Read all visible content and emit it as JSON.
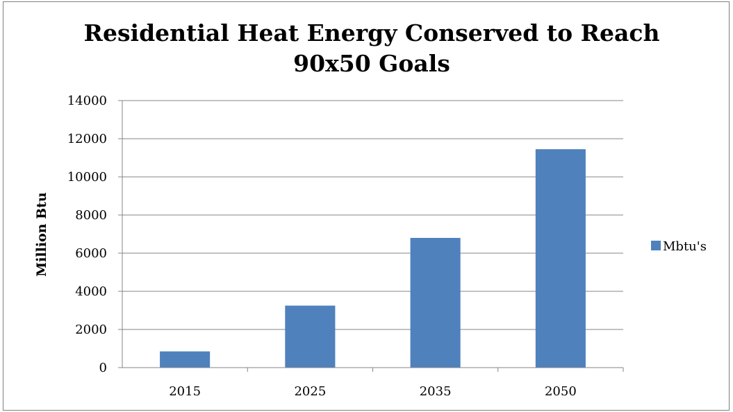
{
  "chart_data": {
    "type": "bar",
    "title_lines": [
      "Residential Heat Energy  Conserved to Reach",
      "90x50 Goals"
    ],
    "categories": [
      "2015",
      "2025",
      "2035",
      "2050"
    ],
    "series": [
      {
        "name": "Mbtu's",
        "values": [
          850,
          3250,
          6800,
          11450
        ],
        "color": "#4f81bd"
      }
    ],
    "ylabel": "Million Btu",
    "xlabel": "",
    "ylim": [
      0,
      14000
    ],
    "yticks": [
      0,
      2000,
      4000,
      6000,
      8000,
      10000,
      12000,
      14000
    ],
    "grid": true,
    "legend_position": "right",
    "gridline_color": "#868686"
  }
}
